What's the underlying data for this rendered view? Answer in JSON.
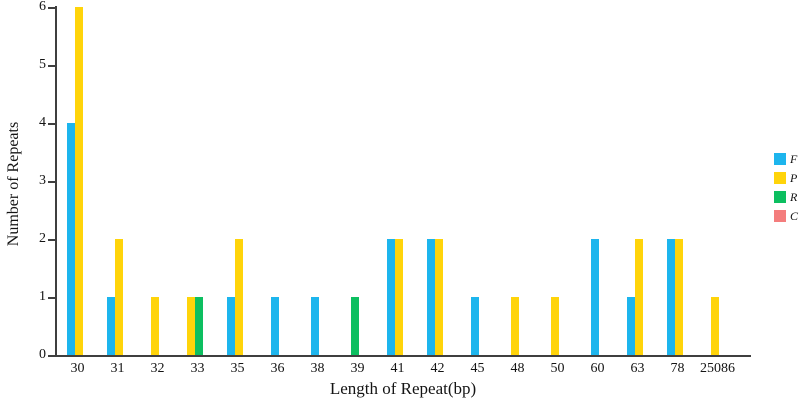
{
  "chart_data": {
    "type": "bar",
    "title": "",
    "xlabel": "Length of Repeat(bp)",
    "ylabel": "Number of Repeats",
    "categories": [
      "30",
      "31",
      "32",
      "33",
      "35",
      "36",
      "38",
      "39",
      "41",
      "42",
      "45",
      "48",
      "50",
      "60",
      "63",
      "78",
      "25086"
    ],
    "series": [
      {
        "name": "F",
        "color": "#1db5ed",
        "values": [
          4,
          1,
          0,
          0,
          1,
          1,
          1,
          0,
          2,
          2,
          1,
          0,
          0,
          2,
          1,
          2,
          0
        ]
      },
      {
        "name": "P",
        "color": "#ffd40a",
        "values": [
          6,
          2,
          1,
          1,
          2,
          0,
          0,
          0,
          2,
          2,
          0,
          1,
          1,
          0,
          2,
          2,
          1
        ]
      },
      {
        "name": "R",
        "color": "#0cbf60",
        "values": [
          0,
          0,
          0,
          1,
          0,
          0,
          0,
          1,
          0,
          0,
          0,
          0,
          0,
          0,
          0,
          0,
          0
        ]
      },
      {
        "name": "C",
        "color": "#f47d7d",
        "values": [
          0,
          0,
          0,
          0,
          0,
          0,
          0,
          0,
          0,
          0,
          0,
          0,
          0,
          0,
          0,
          0,
          0
        ]
      }
    ],
    "ylim": [
      0,
      6
    ],
    "yticks": [
      0,
      1,
      2,
      3,
      4,
      5,
      6
    ],
    "legend_position": "right",
    "grid": false,
    "bar_mode": "grouped",
    "axis_color": "#3f3f3f",
    "text_color": "#141414",
    "background_color": "#ffffff"
  }
}
